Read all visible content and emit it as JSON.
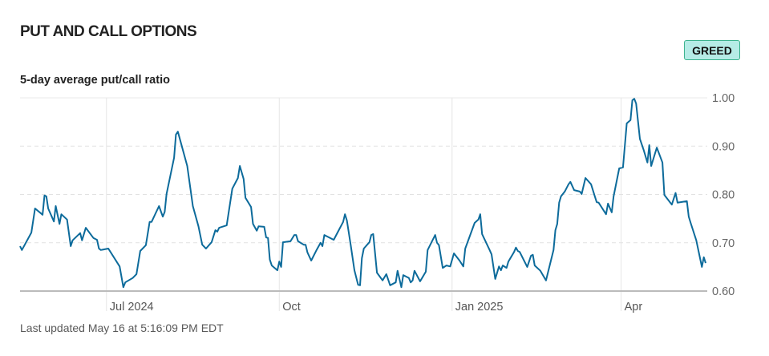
{
  "header": {
    "title": "PUT AND CALL OPTIONS",
    "badge": "GREED",
    "subtitle": "5-day average put/call ratio"
  },
  "footer": {
    "last_updated": "Last updated May 16 at 5:16:09 PM EDT"
  },
  "colors": {
    "line": "#0d6b9b",
    "badge_bg": "#b6ece6",
    "badge_border": "#3db38e"
  },
  "chart_data": {
    "type": "line",
    "title": "5-day average put/call ratio",
    "x_unit": "days since start (approx. May 16, 2024)",
    "xlim": [
      0,
      365
    ],
    "ylim": [
      0.6,
      1.0
    ],
    "yticks": [
      {
        "v": 0.6,
        "label": "0.60"
      },
      {
        "v": 0.7,
        "label": "0.70"
      },
      {
        "v": 0.8,
        "label": "0.80"
      },
      {
        "v": 0.9,
        "label": "0.90"
      },
      {
        "v": 1.0,
        "label": "1.00"
      }
    ],
    "xticks": [
      {
        "d": 46,
        "label": "Jul 2024"
      },
      {
        "d": 138,
        "label": "Oct"
      },
      {
        "d": 230,
        "label": "Jan 2025"
      },
      {
        "d": 320,
        "label": "Apr"
      }
    ],
    "grid": true,
    "series": [
      {
        "name": "5-day average put/call ratio",
        "points": [
          [
            0,
            0.693
          ],
          [
            1,
            0.685
          ],
          [
            6,
            0.721
          ],
          [
            8,
            0.771
          ],
          [
            12,
            0.758
          ],
          [
            13,
            0.798
          ],
          [
            14,
            0.796
          ],
          [
            15,
            0.771
          ],
          [
            18,
            0.744
          ],
          [
            19,
            0.776
          ],
          [
            21,
            0.739
          ],
          [
            22,
            0.759
          ],
          [
            25,
            0.748
          ],
          [
            27,
            0.693
          ],
          [
            28,
            0.705
          ],
          [
            32,
            0.72
          ],
          [
            33,
            0.705
          ],
          [
            35,
            0.731
          ],
          [
            39,
            0.71
          ],
          [
            41,
            0.706
          ],
          [
            42,
            0.688
          ],
          [
            43,
            0.685
          ],
          [
            47,
            0.688
          ],
          [
            53,
            0.651
          ],
          [
            55,
            0.608
          ],
          [
            56,
            0.618
          ],
          [
            60,
            0.627
          ],
          [
            62,
            0.635
          ],
          [
            64,
            0.683
          ],
          [
            67,
            0.695
          ],
          [
            69,
            0.743
          ],
          [
            70,
            0.743
          ],
          [
            74,
            0.776
          ],
          [
            76,
            0.754
          ],
          [
            77,
            0.764
          ],
          [
            78,
            0.801
          ],
          [
            82,
            0.876
          ],
          [
            83,
            0.924
          ],
          [
            84,
            0.93
          ],
          [
            89,
            0.859
          ],
          [
            92,
            0.776
          ],
          [
            95,
            0.734
          ],
          [
            97,
            0.696
          ],
          [
            99,
            0.688
          ],
          [
            102,
            0.701
          ],
          [
            104,
            0.726
          ],
          [
            105,
            0.723
          ],
          [
            106,
            0.731
          ],
          [
            110,
            0.736
          ],
          [
            113,
            0.812
          ],
          [
            116,
            0.834
          ],
          [
            117,
            0.859
          ],
          [
            119,
            0.832
          ],
          [
            120,
            0.793
          ],
          [
            123,
            0.774
          ],
          [
            124,
            0.739
          ],
          [
            126,
            0.725
          ],
          [
            127,
            0.734
          ],
          [
            130,
            0.733
          ],
          [
            131,
            0.711
          ],
          [
            132,
            0.71
          ],
          [
            133,
            0.665
          ],
          [
            134,
            0.653
          ],
          [
            137,
            0.643
          ],
          [
            138,
            0.661
          ],
          [
            139,
            0.65
          ],
          [
            140,
            0.701
          ],
          [
            144,
            0.703
          ],
          [
            146,
            0.716
          ],
          [
            147,
            0.716
          ],
          [
            148,
            0.703
          ],
          [
            151,
            0.696
          ],
          [
            152,
            0.696
          ],
          [
            153,
            0.68
          ],
          [
            155,
            0.663
          ],
          [
            158,
            0.686
          ],
          [
            160,
            0.7
          ],
          [
            161,
            0.693
          ],
          [
            162,
            0.716
          ],
          [
            167,
            0.706
          ],
          [
            169,
            0.721
          ],
          [
            172,
            0.743
          ],
          [
            173,
            0.759
          ],
          [
            174,
            0.746
          ],
          [
            176,
            0.696
          ],
          [
            178,
            0.643
          ],
          [
            180,
            0.613
          ],
          [
            181,
            0.612
          ],
          [
            182,
            0.668
          ],
          [
            183,
            0.688
          ],
          [
            186,
            0.701
          ],
          [
            187,
            0.716
          ],
          [
            188,
            0.718
          ],
          [
            190,
            0.638
          ],
          [
            193,
            0.622
          ],
          [
            195,
            0.635
          ],
          [
            197,
            0.612
          ],
          [
            200,
            0.618
          ],
          [
            201,
            0.642
          ],
          [
            203,
            0.608
          ],
          [
            204,
            0.633
          ],
          [
            207,
            0.627
          ],
          [
            208,
            0.618
          ],
          [
            209,
            0.622
          ],
          [
            210,
            0.642
          ],
          [
            213,
            0.62
          ],
          [
            216,
            0.64
          ],
          [
            217,
            0.685
          ],
          [
            221,
            0.716
          ],
          [
            222,
            0.7
          ],
          [
            223,
            0.695
          ],
          [
            225,
            0.648
          ],
          [
            227,
            0.653
          ],
          [
            229,
            0.651
          ],
          [
            231,
            0.678
          ],
          [
            234,
            0.663
          ],
          [
            236,
            0.651
          ],
          [
            237,
            0.688
          ],
          [
            242,
            0.741
          ],
          [
            244,
            0.748
          ],
          [
            245,
            0.759
          ],
          [
            246,
            0.718
          ],
          [
            250,
            0.685
          ],
          [
            251,
            0.676
          ],
          [
            253,
            0.625
          ],
          [
            255,
            0.651
          ],
          [
            256,
            0.643
          ],
          [
            257,
            0.653
          ],
          [
            259,
            0.648
          ],
          [
            260,
            0.661
          ],
          [
            263,
            0.681
          ],
          [
            264,
            0.69
          ],
          [
            265,
            0.683
          ],
          [
            266,
            0.681
          ],
          [
            270,
            0.65
          ],
          [
            272,
            0.673
          ],
          [
            273,
            0.675
          ],
          [
            274,
            0.653
          ],
          [
            277,
            0.642
          ],
          [
            280,
            0.622
          ],
          [
            284,
            0.685
          ],
          [
            285,
            0.726
          ],
          [
            286,
            0.739
          ],
          [
            287,
            0.783
          ],
          [
            288,
            0.796
          ],
          [
            290,
            0.806
          ],
          [
            292,
            0.821
          ],
          [
            293,
            0.826
          ],
          [
            295,
            0.809
          ],
          [
            298,
            0.806
          ],
          [
            299,
            0.801
          ],
          [
            301,
            0.834
          ],
          [
            304,
            0.821
          ],
          [
            306,
            0.796
          ],
          [
            307,
            0.784
          ],
          [
            308,
            0.783
          ],
          [
            312,
            0.759
          ],
          [
            313,
            0.781
          ],
          [
            315,
            0.763
          ],
          [
            316,
            0.796
          ],
          [
            319,
            0.854
          ],
          [
            321,
            0.856
          ],
          [
            323,
            0.947
          ],
          [
            325,
            0.954
          ],
          [
            326,
            0.995
          ],
          [
            327,
            0.998
          ],
          [
            328,
            0.988
          ],
          [
            330,
            0.915
          ],
          [
            332,
            0.892
          ],
          [
            334,
            0.866
          ],
          [
            335,
            0.902
          ],
          [
            336,
            0.859
          ],
          [
            339,
            0.897
          ],
          [
            342,
            0.866
          ],
          [
            343,
            0.799
          ],
          [
            347,
            0.779
          ],
          [
            349,
            0.803
          ],
          [
            350,
            0.783
          ],
          [
            355,
            0.786
          ],
          [
            356,
            0.754
          ],
          [
            357,
            0.741
          ],
          [
            360,
            0.705
          ],
          [
            362,
            0.668
          ],
          [
            363,
            0.65
          ],
          [
            364,
            0.67
          ],
          [
            365,
            0.658
          ]
        ]
      }
    ]
  }
}
